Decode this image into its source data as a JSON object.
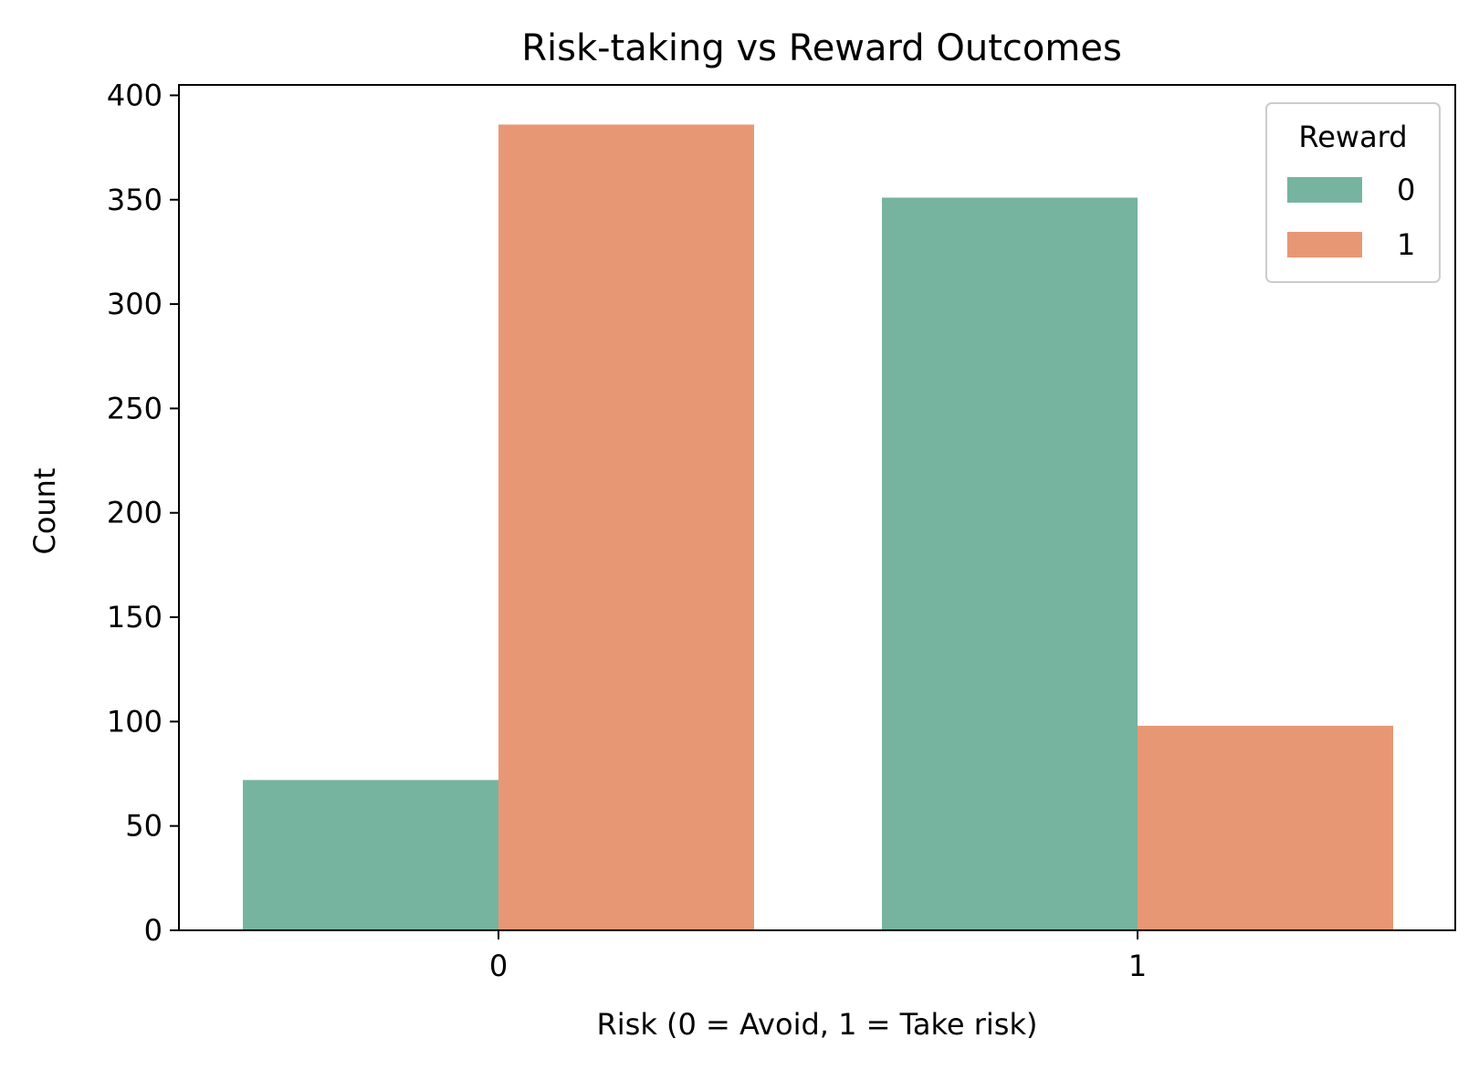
{
  "chart_data": {
    "type": "bar",
    "title": "Risk-taking vs Reward Outcomes",
    "xlabel": "Risk (0 = Avoid, 1 = Take risk)",
    "ylabel": "Count",
    "categories": [
      "0",
      "1"
    ],
    "series": [
      {
        "name": "0",
        "values": [
          72,
          351
        ],
        "color": "#76b4a0"
      },
      {
        "name": "1",
        "values": [
          386,
          98
        ],
        "color": "#e89775"
      }
    ],
    "ylim": [
      0,
      405
    ],
    "yticks": [
      0,
      50,
      100,
      150,
      200,
      250,
      300,
      350,
      400
    ],
    "legend": {
      "title": "Reward",
      "placement": "top-right"
    },
    "grid": false
  }
}
